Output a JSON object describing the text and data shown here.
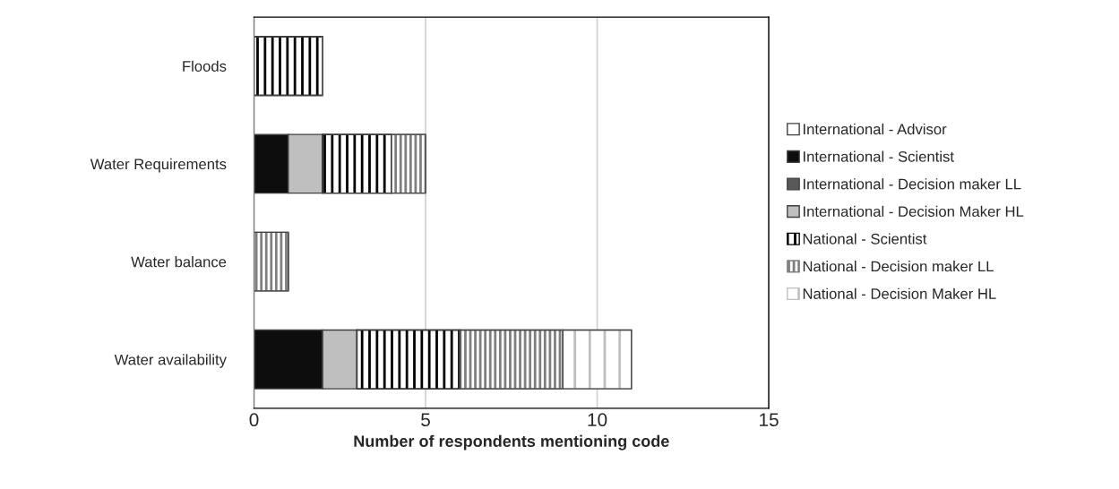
{
  "chart_data": {
    "type": "bar",
    "orientation": "horizontal",
    "stacked": true,
    "xlabel": "Number of respondents mentioning code",
    "categories": [
      "Floods",
      "Water Requirements",
      "Water balance",
      "Water availability"
    ],
    "series": [
      {
        "name": "International - Advisor",
        "color": "#ffffff",
        "values": [
          0,
          0,
          0,
          0
        ]
      },
      {
        "name": "International - Scientist",
        "color": "#0d0d0d",
        "values": [
          0,
          1,
          0,
          2
        ]
      },
      {
        "name": "International - Decision maker LL",
        "color": "#595959",
        "values": [
          0,
          0,
          0,
          0
        ]
      },
      {
        "name": "International - Decision Maker HL",
        "color": "#bfbfbf",
        "values": [
          0,
          1,
          0,
          1
        ]
      },
      {
        "name": "National - Scientist",
        "color": "#000000",
        "values": [
          2,
          2,
          0,
          3
        ]
      },
      {
        "name": "National - Decision maker LL",
        "color": "#7f7f7f",
        "values": [
          0,
          1,
          1,
          3
        ]
      },
      {
        "name": "National - Decision Maker HL",
        "color": "#bfbfbf",
        "values": [
          0,
          0,
          0,
          2
        ]
      }
    ],
    "xlim": [
      0,
      15
    ],
    "xticks": [
      0,
      5,
      10,
      15
    ],
    "grid": "x",
    "legend": "right"
  }
}
